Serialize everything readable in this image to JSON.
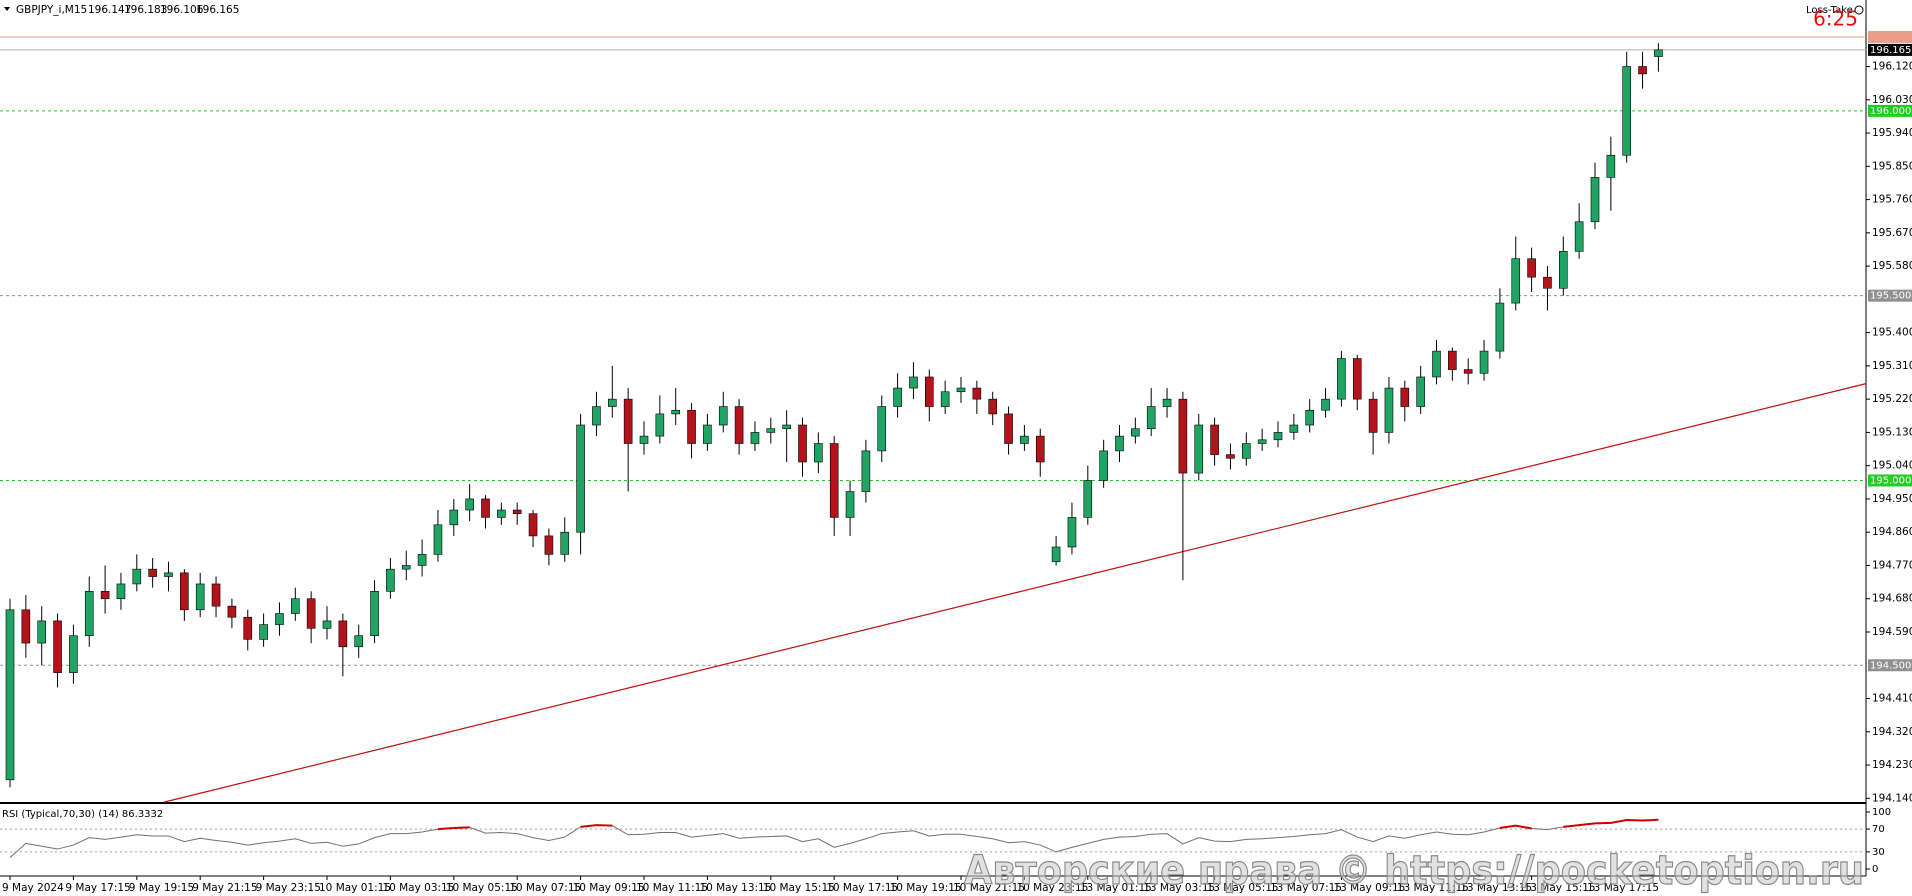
{
  "chart_data": {
    "type": "candlestick",
    "symbol": "GBPJPY_i,M15",
    "indicator_label": "Loss-Take",
    "timer": "6:25",
    "watermark": "Авторские права © https://pocketoption.ru",
    "up_color": "#1fa463",
    "down_color": "#b3131b",
    "ylim": [
      194.13,
      196.3
    ],
    "yticks": [
      {
        "value": 194.14,
        "label": "194.140"
      },
      {
        "value": 194.23,
        "label": "194.230"
      },
      {
        "value": 194.32,
        "label": "194.320"
      },
      {
        "value": 194.41,
        "label": "194.410"
      },
      {
        "value": 194.59,
        "label": "194.590"
      },
      {
        "value": 194.68,
        "label": "194.680"
      },
      {
        "value": 194.77,
        "label": "194.770"
      },
      {
        "value": 194.86,
        "label": "194.860"
      },
      {
        "value": 194.95,
        "label": "194.950"
      },
      {
        "value": 195.04,
        "label": "195.040"
      },
      {
        "value": 195.13,
        "label": "195.130"
      },
      {
        "value": 195.22,
        "label": "195.220"
      },
      {
        "value": 195.31,
        "label": "195.310"
      },
      {
        "value": 195.4,
        "label": "195.400"
      },
      {
        "value": 195.58,
        "label": "195.580"
      },
      {
        "value": 195.67,
        "label": "195.670"
      },
      {
        "value": 195.76,
        "label": "195.760"
      },
      {
        "value": 195.85,
        "label": "195.850"
      },
      {
        "value": 195.94,
        "label": "195.940"
      },
      {
        "value": 196.03,
        "label": "196.030"
      },
      {
        "value": 196.12,
        "label": "196.120"
      }
    ],
    "levels": [
      {
        "value": 196,
        "label": "196.000",
        "color": "#22cc22",
        "badge": "#22cc22"
      },
      {
        "value": 195.5,
        "label": "195.500",
        "color": "#909090",
        "badge": "#909090"
      },
      {
        "value": 195,
        "label": "195.000",
        "color": "#22cc22",
        "badge": "#22cc22"
      },
      {
        "value": 194.5,
        "label": "194.500",
        "color": "#909090",
        "badge": "#909090"
      }
    ],
    "top_line": {
      "value": 196.2,
      "color": "#e8a08a"
    },
    "current_price": 196.165,
    "trendline": {
      "x": [
        9.75,
        117.1
      ],
      "y": [
        194.13,
        195.262
      ],
      "color": "#c01010"
    },
    "categories": [
      "9 May 2024",
      null,
      null,
      null,
      "9 May 17:15",
      null,
      null,
      null,
      "9 May 19:15",
      null,
      null,
      null,
      "9 May 21:15",
      null,
      null,
      null,
      "9 May 23:15",
      null,
      null,
      null,
      "10 May 01:15",
      null,
      null,
      null,
      "10 May 03:15",
      null,
      null,
      null,
      "10 May 05:15",
      null,
      null,
      null,
      "10 May 07:15",
      null,
      null,
      null,
      "10 May 09:15",
      null,
      null,
      null,
      "10 May 11:15",
      null,
      null,
      null,
      "10 May 13:15",
      null,
      null,
      null,
      "10 May 15:15",
      null,
      null,
      null,
      "10 May 17:15",
      null,
      null,
      null,
      "10 May 19:15",
      null,
      null,
      null,
      "10 May 21:15",
      null,
      null,
      null,
      "10 May 23:15",
      null,
      null,
      null,
      "13 May 01:15",
      null,
      null,
      null,
      "13 May 03:15",
      null,
      null,
      null,
      "13 May 05:15",
      null,
      null,
      null,
      "13 May 07:15",
      null,
      null,
      null,
      "13 May 09:15",
      null,
      null,
      null,
      "13 May 11:15",
      null,
      null,
      null,
      "13 May 13:15",
      null,
      null,
      null,
      "13 May 15:15",
      null,
      null,
      null,
      "13 May 17:15",
      null,
      null,
      null,
      null
    ],
    "candles": [
      [
        194.19,
        194.68,
        194.17,
        194.65
      ],
      [
        194.65,
        194.69,
        194.52,
        194.56
      ],
      [
        194.56,
        194.66,
        194.5,
        194.62
      ],
      [
        194.62,
        194.64,
        194.44,
        194.48
      ],
      [
        194.48,
        194.61,
        194.45,
        194.58
      ],
      [
        194.58,
        194.74,
        194.55,
        194.7
      ],
      [
        194.7,
        194.77,
        194.64,
        194.68
      ],
      [
        194.68,
        194.75,
        194.65,
        194.72
      ],
      [
        194.72,
        194.8,
        194.7,
        194.76
      ],
      [
        194.76,
        194.79,
        194.71,
        194.74
      ],
      [
        194.74,
        194.78,
        194.7,
        194.75
      ],
      [
        194.75,
        194.76,
        194.62,
        194.65
      ],
      [
        194.65,
        194.75,
        194.63,
        194.72
      ],
      [
        194.72,
        194.74,
        194.63,
        194.66
      ],
      [
        194.66,
        194.68,
        194.6,
        194.63
      ],
      [
        194.63,
        194.65,
        194.54,
        194.57
      ],
      [
        194.57,
        194.64,
        194.55,
        194.61
      ],
      [
        194.61,
        194.67,
        194.58,
        194.64
      ],
      [
        194.64,
        194.71,
        194.62,
        194.68
      ],
      [
        194.68,
        194.7,
        194.56,
        194.6
      ],
      [
        194.6,
        194.66,
        194.57,
        194.62
      ],
      [
        194.62,
        194.64,
        194.47,
        194.55
      ],
      [
        194.55,
        194.61,
        194.52,
        194.58
      ],
      [
        194.58,
        194.73,
        194.56,
        194.7
      ],
      [
        194.7,
        194.79,
        194.68,
        194.76
      ],
      [
        194.76,
        194.81,
        194.73,
        194.77
      ],
      [
        194.77,
        194.84,
        194.74,
        194.8
      ],
      [
        194.8,
        194.92,
        194.78,
        194.88
      ],
      [
        194.88,
        194.95,
        194.85,
        194.92
      ],
      [
        194.92,
        194.99,
        194.89,
        194.95
      ],
      [
        194.95,
        194.96,
        194.87,
        194.9
      ],
      [
        194.9,
        194.94,
        194.88,
        194.92
      ],
      [
        194.92,
        194.94,
        194.88,
        194.91
      ],
      [
        194.91,
        194.92,
        194.82,
        194.85
      ],
      [
        194.85,
        194.87,
        194.77,
        194.8
      ],
      [
        194.8,
        194.9,
        194.78,
        194.86
      ],
      [
        194.86,
        195.18,
        194.8,
        195.15
      ],
      [
        195.15,
        195.24,
        195.12,
        195.2
      ],
      [
        195.2,
        195.31,
        195.17,
        195.22
      ],
      [
        195.22,
        195.25,
        194.97,
        195.1
      ],
      [
        195.1,
        195.16,
        195.07,
        195.12
      ],
      [
        195.12,
        195.23,
        195.1,
        195.18
      ],
      [
        195.18,
        195.25,
        195.15,
        195.19
      ],
      [
        195.19,
        195.21,
        195.06,
        195.1
      ],
      [
        195.1,
        195.18,
        195.08,
        195.15
      ],
      [
        195.15,
        195.24,
        195.13,
        195.2
      ],
      [
        195.2,
        195.22,
        195.07,
        195.1
      ],
      [
        195.1,
        195.16,
        195.08,
        195.13
      ],
      [
        195.13,
        195.17,
        195.1,
        195.14
      ],
      [
        195.14,
        195.19,
        195.05,
        195.15
      ],
      [
        195.15,
        195.17,
        195.01,
        195.05
      ],
      [
        195.05,
        195.13,
        195.02,
        195.1
      ],
      [
        195.1,
        195.12,
        194.85,
        194.9
      ],
      [
        194.9,
        195,
        194.85,
        194.97
      ],
      [
        194.97,
        195.11,
        194.94,
        195.08
      ],
      [
        195.08,
        195.23,
        195.05,
        195.2
      ],
      [
        195.2,
        195.29,
        195.17,
        195.25
      ],
      [
        195.25,
        195.32,
        195.22,
        195.28
      ],
      [
        195.28,
        195.3,
        195.16,
        195.2
      ],
      [
        195.2,
        195.27,
        195.18,
        195.24
      ],
      [
        195.24,
        195.28,
        195.21,
        195.25
      ],
      [
        195.25,
        195.27,
        195.18,
        195.22
      ],
      [
        195.22,
        195.24,
        195.15,
        195.18
      ],
      [
        195.18,
        195.2,
        195.07,
        195.1
      ],
      [
        195.1,
        195.15,
        195.08,
        195.12
      ],
      [
        195.12,
        195.14,
        195.01,
        195.05
      ],
      [
        194.78,
        194.85,
        194.77,
        194.82
      ],
      [
        194.82,
        194.94,
        194.8,
        194.9
      ],
      [
        194.9,
        195.04,
        194.88,
        195
      ],
      [
        195,
        195.11,
        194.98,
        195.08
      ],
      [
        195.08,
        195.15,
        195.05,
        195.12
      ],
      [
        195.12,
        195.17,
        195.1,
        195.14
      ],
      [
        195.14,
        195.25,
        195.12,
        195.2
      ],
      [
        195.2,
        195.25,
        195.17,
        195.22
      ],
      [
        195.22,
        195.24,
        194.73,
        195.02
      ],
      [
        195.02,
        195.18,
        195,
        195.15
      ],
      [
        195.15,
        195.17,
        195.04,
        195.07
      ],
      [
        195.07,
        195.1,
        195.03,
        195.06
      ],
      [
        195.06,
        195.13,
        195.04,
        195.1
      ],
      [
        195.1,
        195.14,
        195.08,
        195.11
      ],
      [
        195.11,
        195.16,
        195.09,
        195.13
      ],
      [
        195.13,
        195.18,
        195.11,
        195.15
      ],
      [
        195.15,
        195.22,
        195.13,
        195.19
      ],
      [
        195.19,
        195.25,
        195.17,
        195.22
      ],
      [
        195.22,
        195.35,
        195.2,
        195.33
      ],
      [
        195.33,
        195.34,
        195.19,
        195.22
      ],
      [
        195.22,
        195.24,
        195.07,
        195.13
      ],
      [
        195.13,
        195.28,
        195.1,
        195.25
      ],
      [
        195.25,
        195.27,
        195.16,
        195.2
      ],
      [
        195.2,
        195.31,
        195.18,
        195.28
      ],
      [
        195.28,
        195.38,
        195.26,
        195.35
      ],
      [
        195.35,
        195.36,
        195.27,
        195.3
      ],
      [
        195.3,
        195.33,
        195.26,
        195.29
      ],
      [
        195.29,
        195.38,
        195.27,
        195.35
      ],
      [
        195.35,
        195.52,
        195.33,
        195.48
      ],
      [
        195.48,
        195.66,
        195.46,
        195.6
      ],
      [
        195.6,
        195.63,
        195.51,
        195.55
      ],
      [
        195.55,
        195.58,
        195.46,
        195.52
      ],
      [
        195.52,
        195.66,
        195.5,
        195.62
      ],
      [
        195.62,
        195.75,
        195.6,
        195.7
      ],
      [
        195.7,
        195.86,
        195.68,
        195.82
      ],
      [
        195.82,
        195.93,
        195.73,
        195.88
      ],
      [
        195.88,
        196.16,
        195.86,
        196.12
      ],
      [
        196.12,
        196.16,
        196.06,
        196.1
      ],
      [
        196.147,
        196.183,
        196.106,
        196.165
      ]
    ],
    "rsi": {
      "title": "RSI (Typical,70,30) (14) 86.3332",
      "color": "#707070",
      "overbought_color": "#cc0000",
      "ylim": [
        0,
        100
      ],
      "yticks": [
        0,
        30,
        70,
        100
      ],
      "levels": [
        30,
        70
      ],
      "values": [
        20,
        45,
        40,
        35,
        42,
        55,
        52,
        56,
        60,
        58,
        58,
        48,
        54,
        50,
        47,
        42,
        46,
        49,
        53,
        45,
        47,
        40,
        44,
        55,
        62,
        62,
        65,
        70,
        72,
        73,
        63,
        64,
        62,
        55,
        50,
        56,
        74,
        77,
        76,
        60,
        61,
        64,
        64,
        56,
        59,
        62,
        54,
        56,
        57,
        58,
        48,
        53,
        38,
        45,
        53,
        62,
        65,
        67,
        58,
        61,
        61,
        57,
        53,
        46,
        48,
        42,
        30,
        38,
        45,
        52,
        56,
        57,
        61,
        62,
        44,
        55,
        49,
        48,
        52,
        53,
        55,
        57,
        60,
        62,
        69,
        56,
        48,
        58,
        54,
        60,
        65,
        61,
        60,
        65,
        72,
        76,
        71,
        69,
        74,
        77,
        80,
        81,
        86,
        85,
        86.3332
      ]
    }
  }
}
